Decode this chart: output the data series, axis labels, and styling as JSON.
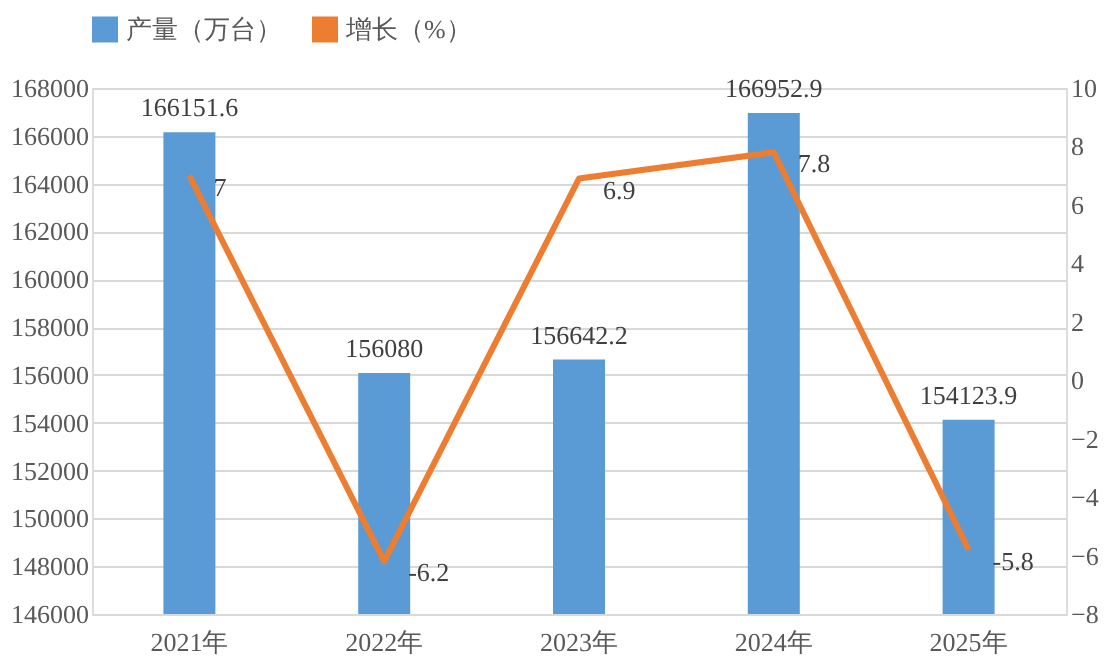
{
  "chart_data": {
    "type": "bar",
    "categories": [
      "2021年",
      "2022年",
      "2023年",
      "2024年",
      "2025年"
    ],
    "series": [
      {
        "name": "产量（万台）",
        "color": "#5b9bd5",
        "values": [
          166151.6,
          156080,
          156642.2,
          166952.9,
          154123.9
        ]
      },
      {
        "name": "增长（%）",
        "type": "line",
        "axis": "y2",
        "color": "#ed7d31",
        "values": [
          7,
          -6.2,
          6.9,
          7.8,
          -5.8
        ]
      }
    ],
    "ylim": [
      146000,
      168000
    ],
    "yticks": [
      146000,
      148000,
      150000,
      152000,
      154000,
      156000,
      158000,
      160000,
      162000,
      164000,
      166000,
      168000
    ],
    "y2lim": [
      -8,
      10
    ],
    "y2ticks": [
      -8,
      -6,
      -4,
      -2,
      0,
      2,
      4,
      6,
      8,
      10
    ],
    "grid": "y",
    "legend": "top",
    "data_labels": true,
    "marker": "none",
    "line_style": "solid"
  }
}
